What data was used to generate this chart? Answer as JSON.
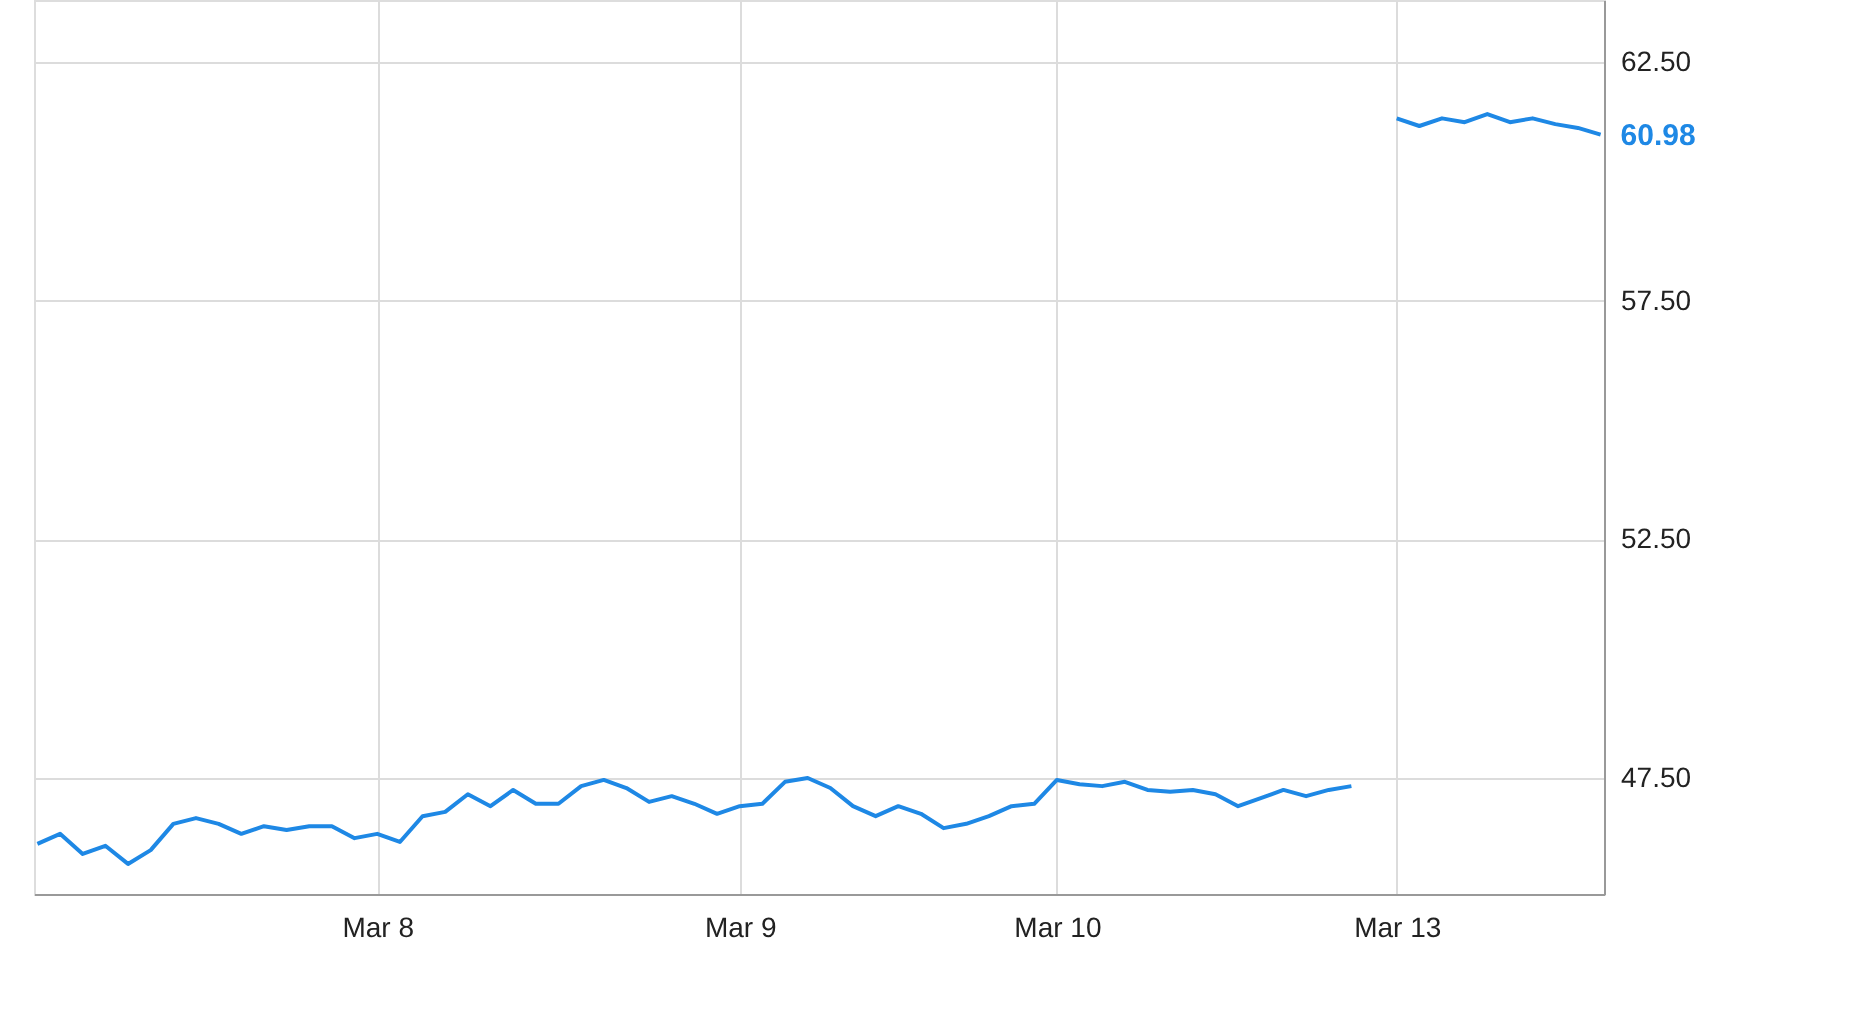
{
  "chart_data": {
    "type": "line",
    "categories": [
      null,
      null,
      null,
      null,
      null,
      null,
      null,
      null,
      null,
      null,
      null,
      null,
      null,
      null,
      null,
      "Mar 8",
      null,
      null,
      null,
      null,
      null,
      null,
      null,
      null,
      null,
      null,
      null,
      null,
      null,
      null,
      null,
      "Mar 9",
      null,
      null,
      null,
      null,
      null,
      null,
      null,
      null,
      null,
      null,
      null,
      null,
      null,
      "Mar 10",
      null,
      null,
      null,
      null,
      null,
      null,
      null,
      null,
      null,
      null,
      null,
      null,
      null,
      null,
      "Mar 13",
      null,
      null,
      null,
      null,
      null,
      null,
      null,
      null,
      null
    ],
    "series": [
      {
        "color": "#1e88e5",
        "values": [
          46.12,
          46.33,
          45.91,
          46.08,
          45.7,
          45.99,
          46.54,
          46.66,
          46.54,
          46.33,
          46.49,
          46.41,
          46.49,
          46.49,
          46.24,
          46.33,
          46.16,
          46.7,
          46.79,
          47.16,
          46.91,
          47.25,
          46.96,
          46.96,
          47.33,
          47.46,
          47.29,
          47.0,
          47.12,
          46.96,
          46.75,
          46.91,
          46.96,
          47.42,
          47.5,
          47.29,
          46.91,
          46.7,
          46.91,
          46.75,
          46.45,
          46.54,
          46.7,
          46.91,
          46.96,
          47.46,
          47.37,
          47.33,
          47.42,
          47.25,
          47.21,
          47.25,
          47.16,
          46.91,
          47.08,
          47.25,
          47.12,
          47.25,
          47.33,
          null,
          61.32,
          61.16,
          61.32,
          61.24,
          61.41,
          61.24,
          61.32,
          61.2,
          61.12,
          60.98
        ]
      }
    ],
    "ylim": [
      45.07,
      63.8
    ],
    "yticks": [
      {
        "value": 47.5,
        "label": "47.50"
      },
      {
        "value": 52.5,
        "label": "52.50"
      },
      {
        "value": 57.5,
        "label": "57.50"
      },
      {
        "value": 62.5,
        "label": "62.50"
      }
    ],
    "annotations": [
      "60.98"
    ],
    "grid": true
  }
}
